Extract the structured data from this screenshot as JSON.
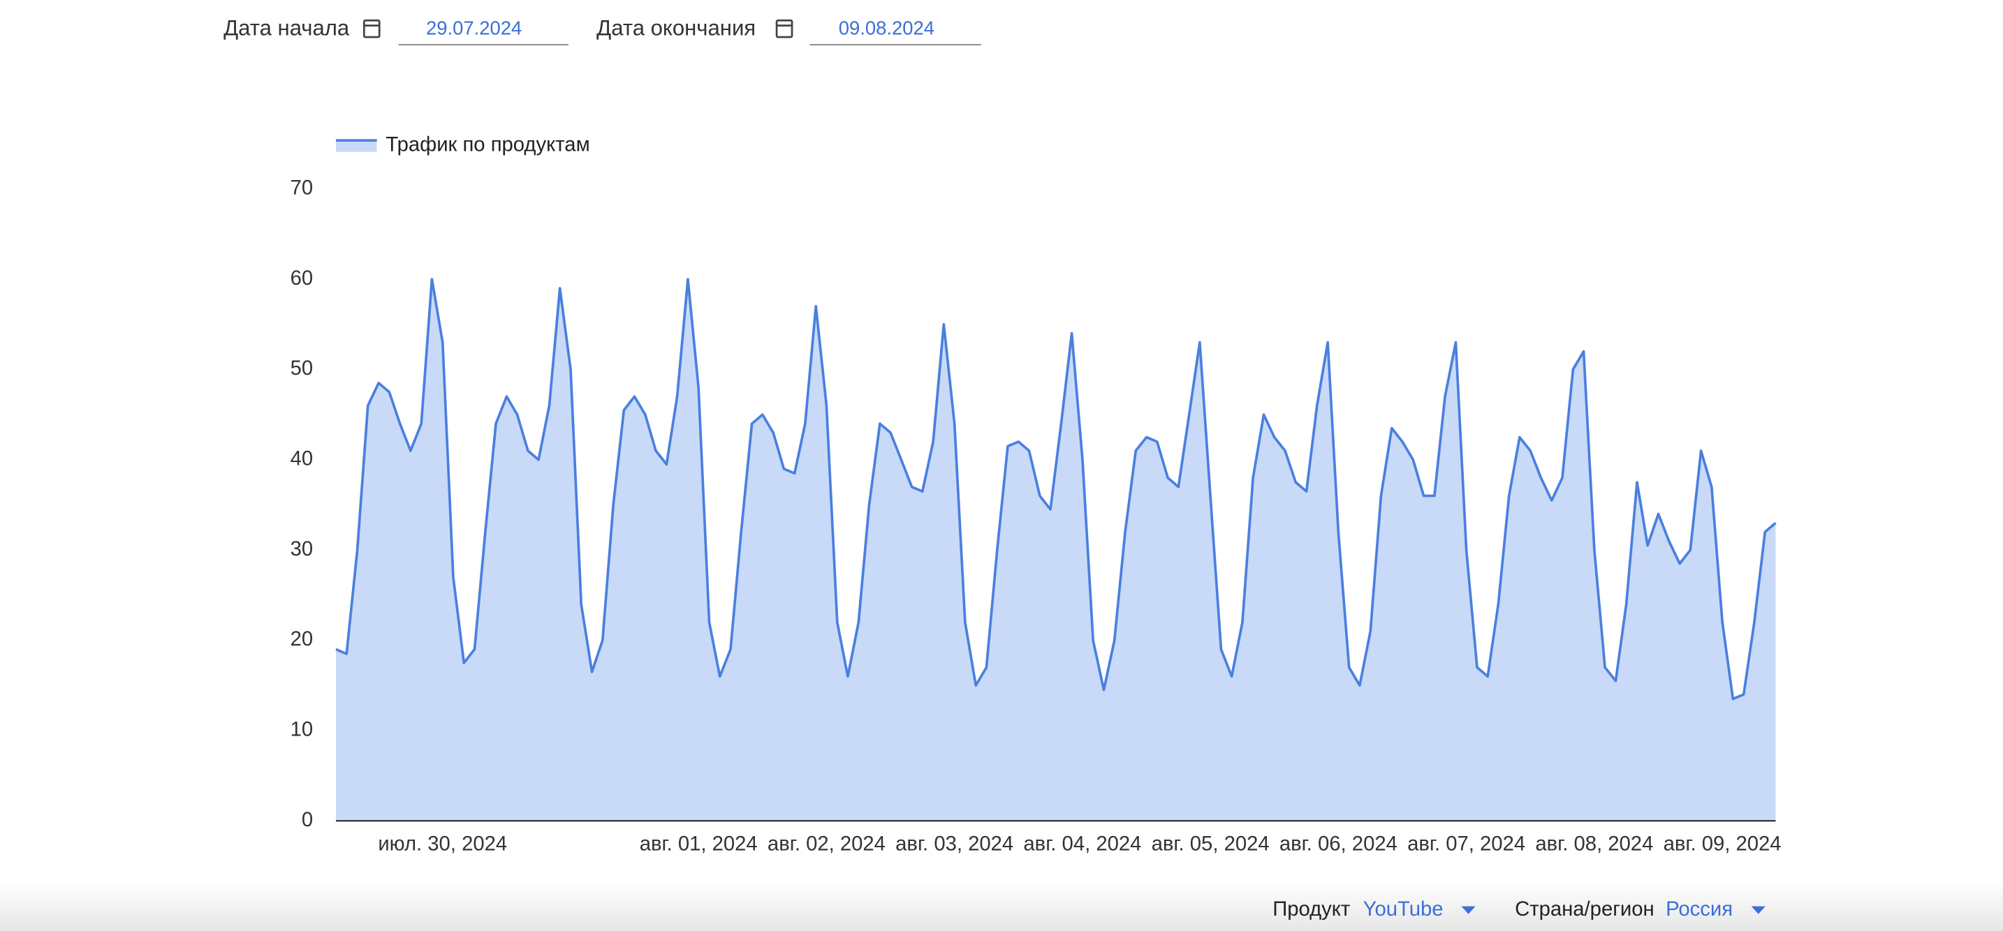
{
  "filters": {
    "start_label": "Дата начала",
    "start_value": "29.07.2024",
    "end_label": "Дата окончания",
    "end_value": "09.08.2024",
    "product_label": "Продукт",
    "product_value": "YouTube",
    "region_label": "Страна/регион",
    "region_value": "Россия"
  },
  "chart_data": {
    "type": "area",
    "categories": [
      null,
      null,
      null,
      null,
      null,
      null,
      null,
      null,
      null,
      null,
      "июл. 30, 2024",
      null,
      null,
      null,
      null,
      null,
      null,
      null,
      null,
      null,
      null,
      null,
      null,
      null,
      null,
      null,
      null,
      null,
      null,
      null,
      null,
      null,
      null,
      null,
      "авг. 01, 2024",
      null,
      null,
      null,
      null,
      null,
      null,
      null,
      null,
      null,
      null,
      null,
      "авг. 02, 2024",
      null,
      null,
      null,
      null,
      null,
      null,
      null,
      null,
      null,
      null,
      null,
      "авг. 03, 2024",
      null,
      null,
      null,
      null,
      null,
      null,
      null,
      null,
      null,
      null,
      null,
      "авг. 04, 2024",
      null,
      null,
      null,
      null,
      null,
      null,
      null,
      null,
      null,
      null,
      null,
      "авг. 05, 2024",
      null,
      null,
      null,
      null,
      null,
      null,
      null,
      null,
      null,
      null,
      null,
      "авг. 06, 2024",
      null,
      null,
      null,
      null,
      null,
      null,
      null,
      null,
      null,
      null,
      null,
      "авг. 07, 2024",
      null,
      null,
      null,
      null,
      null,
      null,
      null,
      null,
      null,
      null,
      null,
      "авг. 08, 2024",
      null,
      null,
      null,
      null,
      null,
      null,
      null,
      null,
      null,
      null,
      null,
      "авг. 09, 2024",
      null,
      null,
      null,
      null,
      null
    ],
    "series": [
      {
        "name": "Трафик по продуктам",
        "color": "#4a7fe0",
        "fill": "#c8daf7",
        "values": [
          19,
          18.5,
          30,
          46,
          48.5,
          47.5,
          44,
          41,
          44,
          60,
          53,
          27,
          17.5,
          19,
          32,
          44,
          47,
          45,
          41,
          40,
          46,
          59,
          50,
          24,
          16.5,
          20,
          35,
          45.5,
          47,
          45,
          41,
          39.5,
          47,
          60,
          48,
          22,
          16,
          19,
          32,
          44,
          45,
          43,
          39,
          38.5,
          44,
          57,
          46,
          22,
          16,
          22,
          35,
          44,
          43,
          40,
          37,
          36.5,
          42,
          55,
          44,
          22,
          15,
          17,
          30,
          41.5,
          42,
          41,
          36,
          34.5,
          44,
          54,
          40,
          20,
          14.5,
          20,
          32,
          41,
          42.5,
          42,
          38,
          37,
          45,
          53,
          36,
          19,
          16,
          22,
          38,
          45,
          42.5,
          41,
          37.5,
          36.5,
          46,
          53,
          32,
          17,
          15,
          21,
          36,
          43.5,
          42,
          40,
          36,
          36,
          47,
          53,
          30,
          17,
          16,
          24,
          36,
          42.5,
          41,
          38,
          35.5,
          38,
          50,
          52,
          30,
          17,
          15.5,
          24,
          37.5,
          30.5,
          34,
          31,
          28.5,
          30,
          41,
          37,
          22,
          13.5,
          14,
          22,
          32,
          33
        ]
      }
    ],
    "ylim": [
      0,
      70
    ],
    "yticks": [
      0,
      10,
      20,
      30,
      40,
      50,
      60,
      70
    ],
    "grid": false
  }
}
